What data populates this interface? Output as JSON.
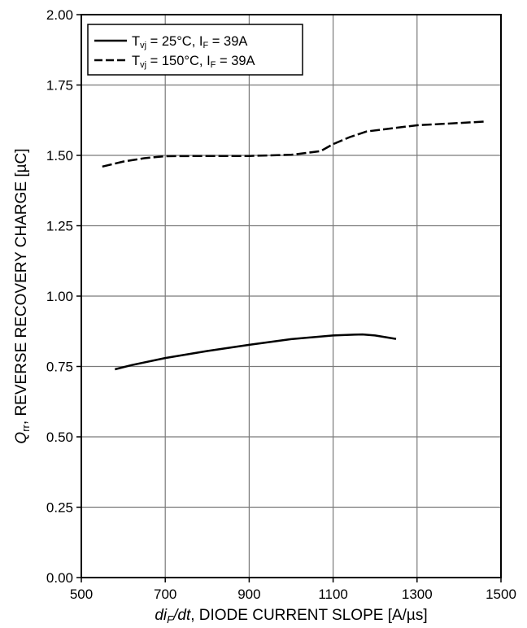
{
  "chart_data": {
    "type": "line",
    "title": "",
    "xlabel": {
      "italic_main": "di",
      "italic_sub": "F",
      "italic_tail": "/dt",
      "rest": ", DIODE CURRENT SLOPE [A/µs]"
    },
    "ylabel": {
      "italic_main": "Q",
      "italic_sub": "rr",
      "rest": ", REVERSE RECOVERY CHARGE [µC]"
    },
    "xlim": [
      500,
      1500
    ],
    "ylim": [
      0.0,
      2.0
    ],
    "xticks": [
      "500",
      "700",
      "900",
      "1100",
      "1300",
      "1500"
    ],
    "yticks": [
      "0.00",
      "0.25",
      "0.50",
      "0.75",
      "1.00",
      "1.25",
      "1.50",
      "1.75",
      "2.00"
    ],
    "grid": true,
    "legend_position": "top-left",
    "series": [
      {
        "name": "T_vj = 25°C, I_F = 39A",
        "legend": {
          "a": "T",
          "a_sub": "vj",
          "b": " = 25°C, I",
          "b_sub": "F",
          "c": " = 39A"
        },
        "style": "solid",
        "color": "#000000",
        "x": [
          580,
          620,
          700,
          800,
          900,
          1000,
          1100,
          1150,
          1170,
          1200,
          1250
        ],
        "y": [
          0.74,
          0.755,
          0.78,
          0.805,
          0.827,
          0.847,
          0.86,
          0.863,
          0.864,
          0.86,
          0.848
        ]
      },
      {
        "name": "T_vj = 150°C, I_F = 39A",
        "legend": {
          "a": "T",
          "a_sub": "vj",
          "b": " = 150°C, I",
          "b_sub": "F",
          "c": " = 39A"
        },
        "style": "dashed",
        "color": "#000000",
        "x": [
          550,
          600,
          650,
          700,
          800,
          900,
          1000,
          1070,
          1100,
          1140,
          1180,
          1250,
          1300,
          1400,
          1460
        ],
        "y": [
          1.46,
          1.478,
          1.49,
          1.497,
          1.498,
          1.498,
          1.502,
          1.515,
          1.54,
          1.565,
          1.585,
          1.598,
          1.607,
          1.615,
          1.62
        ]
      }
    ]
  }
}
